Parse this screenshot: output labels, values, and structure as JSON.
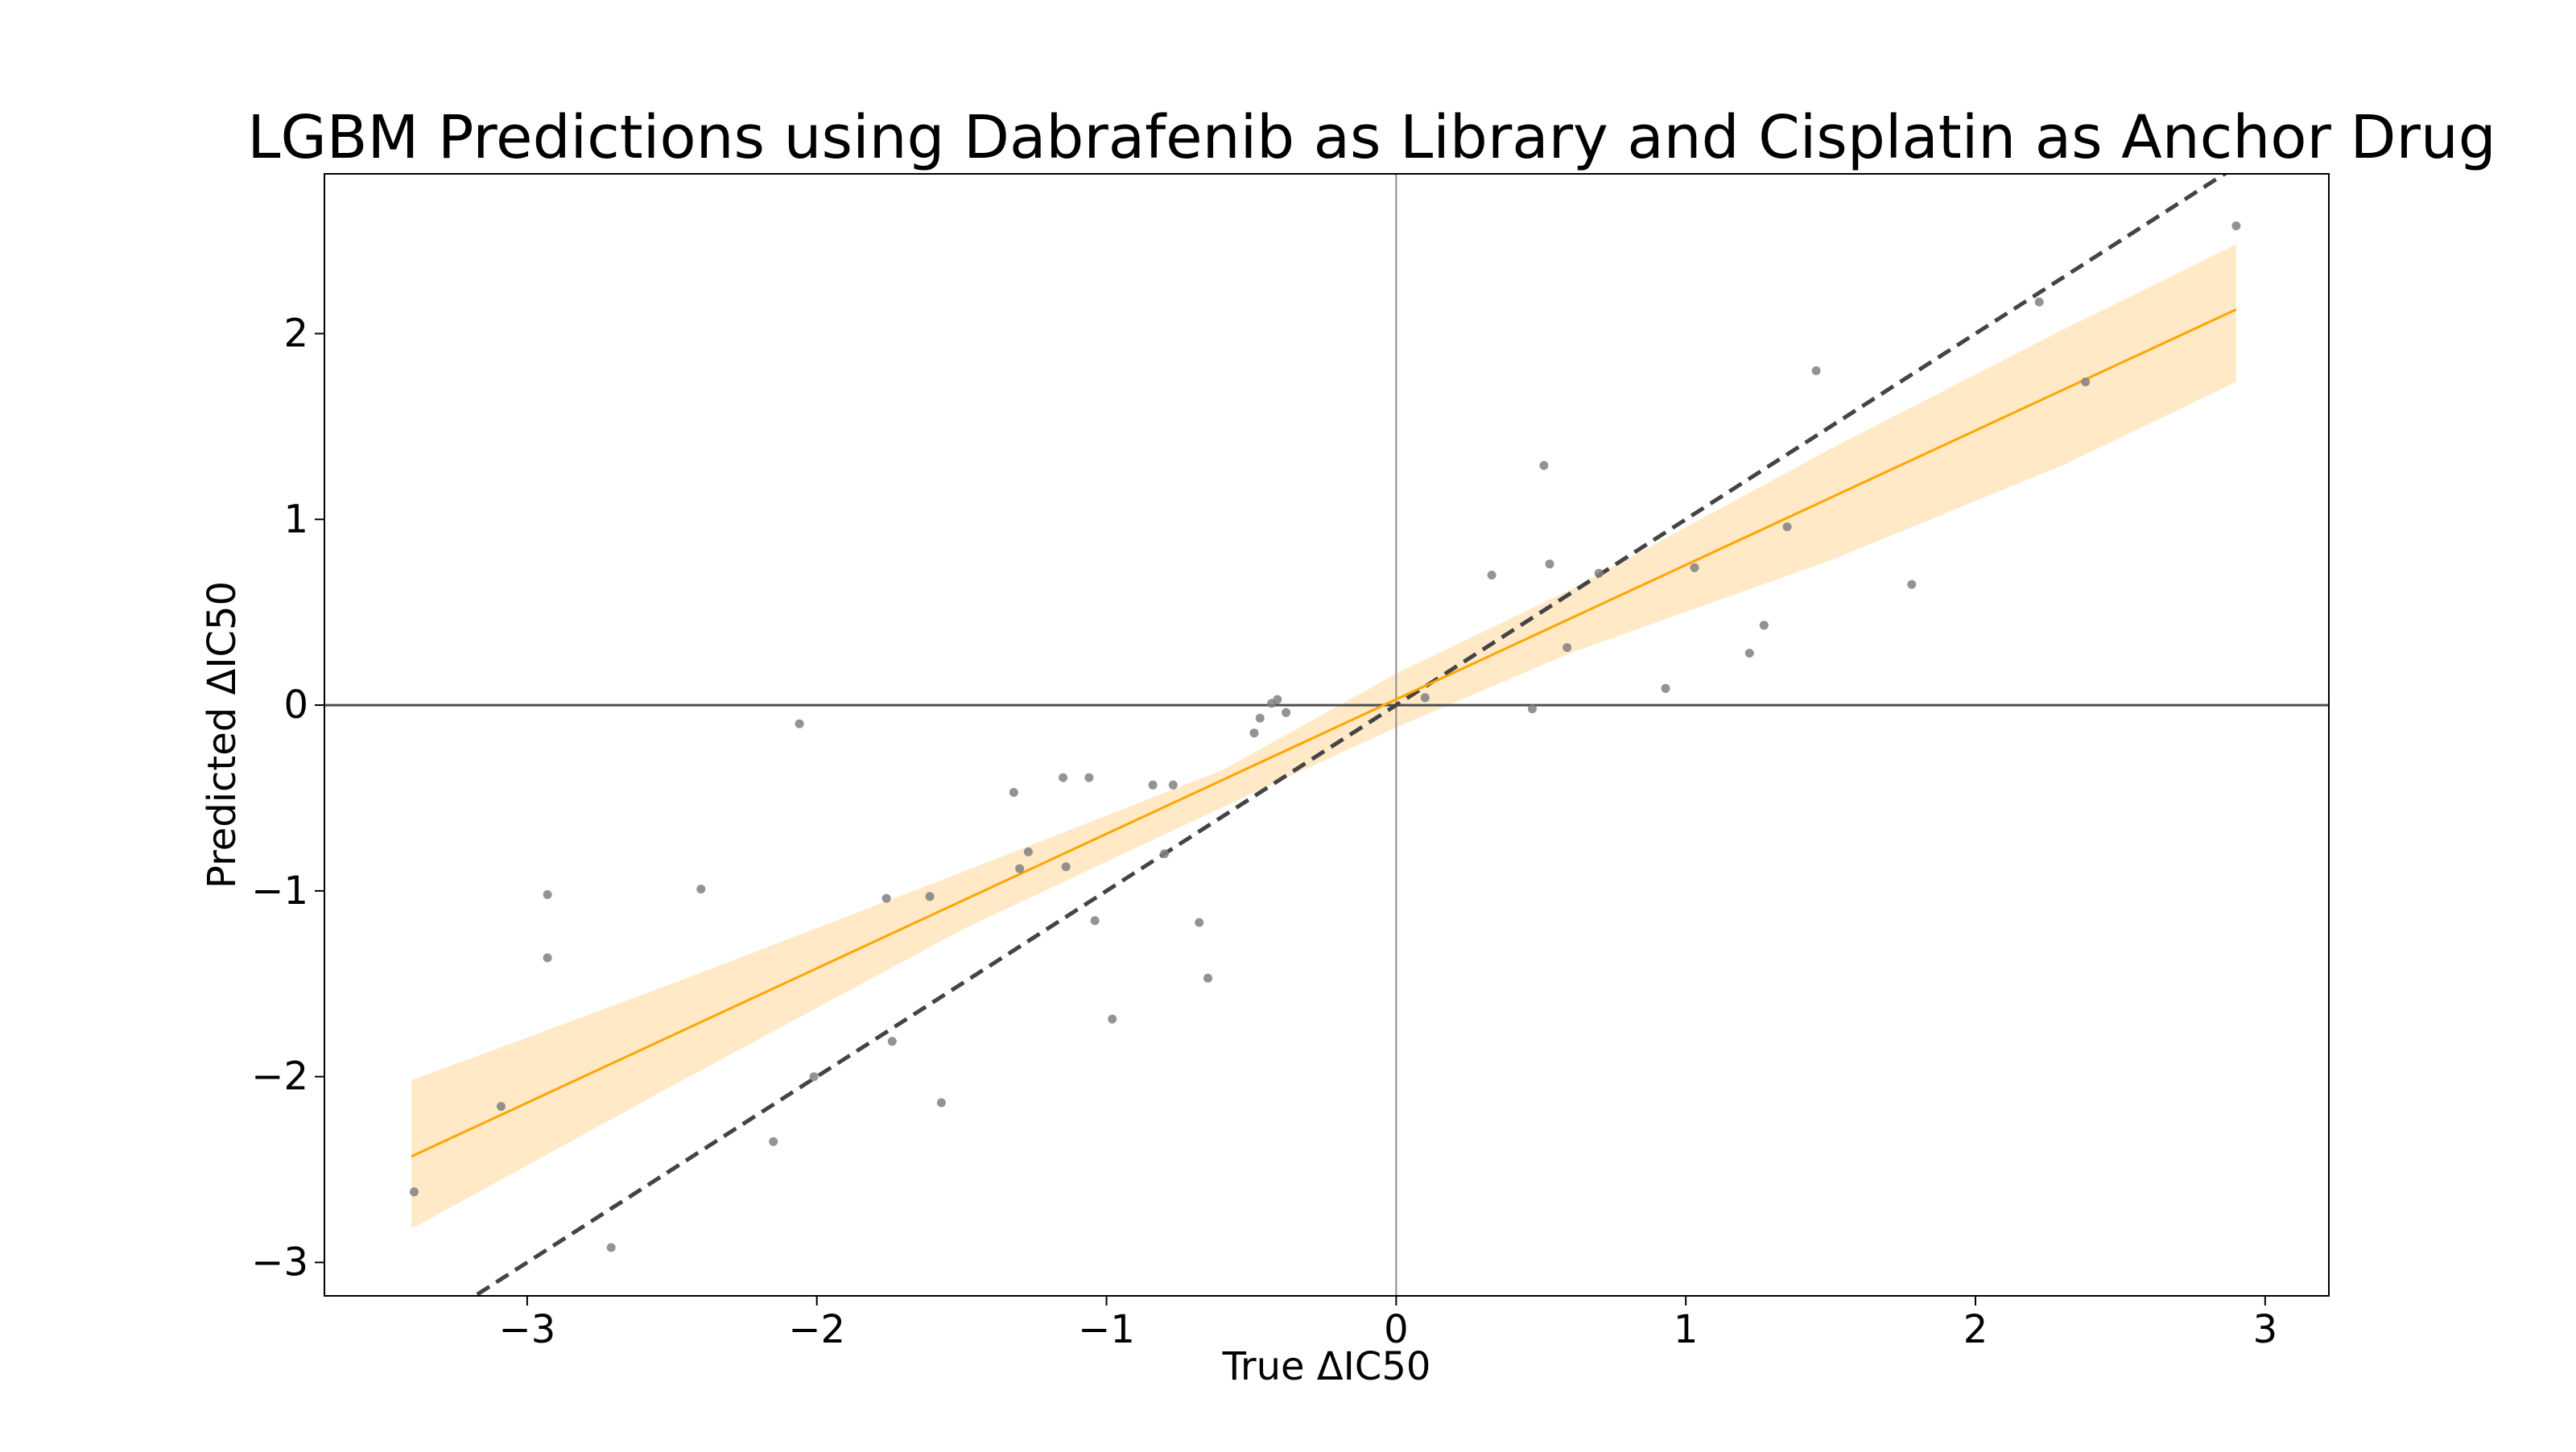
{
  "chart_data": {
    "type": "scatter",
    "title": "LGBM Predictions using Dabrafenib as Library and Cisplatin as Anchor Drug",
    "xlabel": "True ΔIC50",
    "ylabel": "Predicted ΔIC50",
    "xlim": [
      -3.7,
      3.22
    ],
    "ylim": [
      -3.18,
      2.86
    ],
    "x_ticks": [
      -3,
      -2,
      -1,
      0,
      1,
      2,
      3
    ],
    "y_ticks": [
      -3,
      -2,
      -1,
      0,
      1,
      2
    ],
    "x_tick_labels": [
      "−3",
      "−2",
      "−1",
      "0",
      "1",
      "2",
      "3"
    ],
    "y_tick_labels": [
      "−3",
      "−2",
      "−1",
      "0",
      "1",
      "2"
    ],
    "grid": false,
    "zero_lines": true,
    "identity_line": {
      "slope": 1,
      "intercept": 0,
      "style": "dashed",
      "color": "#444444"
    },
    "regression": {
      "x": [
        -3.4,
        2.9
      ],
      "y": [
        -2.43,
        2.13
      ],
      "color": "#ffa500",
      "ci_color": "#ffe9c7",
      "ci_upper": [
        {
          "x": -3.4,
          "y": -2.02
        },
        {
          "x": -2.5,
          "y": -1.5
        },
        {
          "x": -1.5,
          "y": -0.9
        },
        {
          "x": -0.6,
          "y": -0.35
        },
        {
          "x": 0.0,
          "y": 0.17
        },
        {
          "x": 0.6,
          "y": 0.62
        },
        {
          "x": 1.5,
          "y": 1.38
        },
        {
          "x": 2.3,
          "y": 2.02
        },
        {
          "x": 2.9,
          "y": 2.48
        }
      ],
      "ci_lower": [
        {
          "x": 2.9,
          "y": 1.74
        },
        {
          "x": 2.3,
          "y": 1.29
        },
        {
          "x": 1.5,
          "y": 0.78
        },
        {
          "x": 0.6,
          "y": 0.28
        },
        {
          "x": 0.0,
          "y": -0.12
        },
        {
          "x": -0.6,
          "y": -0.55
        },
        {
          "x": -1.5,
          "y": -1.21
        },
        {
          "x": -2.5,
          "y": -2.05
        },
        {
          "x": -3.4,
          "y": -2.82
        }
      ]
    },
    "points_color": "#808080",
    "points": [
      {
        "x": -3.39,
        "y": -2.62
      },
      {
        "x": -3.09,
        "y": -2.16
      },
      {
        "x": -2.93,
        "y": -1.02
      },
      {
        "x": -2.93,
        "y": -1.36
      },
      {
        "x": -2.71,
        "y": -2.92
      },
      {
        "x": -2.4,
        "y": -0.99
      },
      {
        "x": -2.15,
        "y": -2.35
      },
      {
        "x": -2.06,
        "y": -0.1
      },
      {
        "x": -2.01,
        "y": -2.0
      },
      {
        "x": -1.76,
        "y": -1.04
      },
      {
        "x": -1.74,
        "y": -1.81
      },
      {
        "x": -1.61,
        "y": -1.03
      },
      {
        "x": -1.57,
        "y": -2.14
      },
      {
        "x": -1.32,
        "y": -0.47
      },
      {
        "x": -1.3,
        "y": -0.88
      },
      {
        "x": -1.27,
        "y": -0.79
      },
      {
        "x": -1.15,
        "y": -0.39
      },
      {
        "x": -1.14,
        "y": -0.87
      },
      {
        "x": -1.06,
        "y": -0.39
      },
      {
        "x": -1.04,
        "y": -1.16
      },
      {
        "x": -0.98,
        "y": -1.69
      },
      {
        "x": -0.84,
        "y": -0.43
      },
      {
        "x": -0.8,
        "y": -0.8
      },
      {
        "x": -0.77,
        "y": -0.43
      },
      {
        "x": -0.68,
        "y": -1.17
      },
      {
        "x": -0.65,
        "y": -1.47
      },
      {
        "x": -0.49,
        "y": -0.15
      },
      {
        "x": -0.47,
        "y": -0.07
      },
      {
        "x": -0.43,
        "y": 0.01
      },
      {
        "x": -0.41,
        "y": 0.03
      },
      {
        "x": -0.38,
        "y": -0.04
      },
      {
        "x": 0.1,
        "y": 0.04
      },
      {
        "x": 0.33,
        "y": 0.7
      },
      {
        "x": 0.47,
        "y": -0.02
      },
      {
        "x": 0.51,
        "y": 1.29
      },
      {
        "x": 0.53,
        "y": 0.76
      },
      {
        "x": 0.59,
        "y": 0.31
      },
      {
        "x": 0.7,
        "y": 0.71
      },
      {
        "x": 0.93,
        "y": 0.09
      },
      {
        "x": 1.03,
        "y": 0.74
      },
      {
        "x": 1.22,
        "y": 0.28
      },
      {
        "x": 1.27,
        "y": 0.43
      },
      {
        "x": 1.35,
        "y": 0.96
      },
      {
        "x": 1.45,
        "y": 1.8
      },
      {
        "x": 1.78,
        "y": 0.65
      },
      {
        "x": 2.22,
        "y": 2.17
      },
      {
        "x": 2.38,
        "y": 1.74
      },
      {
        "x": 2.9,
        "y": 2.58
      }
    ]
  }
}
